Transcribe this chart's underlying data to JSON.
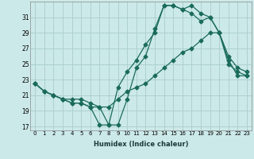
{
  "xlabel": "Humidex (Indice chaleur)",
  "ylabel": "",
  "bg_color": "#cce9e9",
  "line_color": "#1a6b5a",
  "grid_color": "#aed0d0",
  "xlim": [
    -0.5,
    23.5
  ],
  "ylim": [
    16.5,
    33.0
  ],
  "xticks": [
    0,
    1,
    2,
    3,
    4,
    5,
    6,
    7,
    8,
    9,
    10,
    11,
    12,
    13,
    14,
    15,
    16,
    17,
    18,
    19,
    20,
    21,
    22,
    23
  ],
  "yticks": [
    17,
    19,
    21,
    23,
    25,
    27,
    29,
    31
  ],
  "line1_x": [
    0,
    1,
    2,
    3,
    4,
    5,
    6,
    7,
    8,
    9,
    10,
    11,
    12,
    13,
    14,
    15,
    16,
    17,
    18,
    19,
    20,
    21,
    22,
    23
  ],
  "line1_y": [
    22.5,
    21.5,
    21.0,
    20.5,
    20.5,
    20.5,
    20.0,
    19.5,
    17.2,
    17.2,
    20.5,
    24.5,
    26.0,
    29.5,
    32.5,
    32.5,
    32.0,
    32.5,
    31.5,
    31.0,
    29.0,
    26.0,
    24.5,
    24.0
  ],
  "line2_x": [
    0,
    1,
    2,
    3,
    4,
    5,
    6,
    7,
    8,
    9,
    10,
    11,
    12,
    13,
    14,
    15,
    16,
    17,
    18,
    19,
    20,
    21,
    22,
    23
  ],
  "line2_y": [
    22.5,
    21.5,
    21.0,
    20.5,
    20.0,
    20.0,
    19.5,
    17.2,
    17.2,
    22.0,
    24.0,
    25.5,
    27.5,
    29.0,
    32.5,
    32.5,
    32.0,
    31.5,
    30.5,
    31.0,
    29.0,
    25.0,
    24.0,
    23.5
  ],
  "line3_x": [
    0,
    1,
    2,
    3,
    4,
    5,
    6,
    7,
    8,
    9,
    10,
    11,
    12,
    13,
    14,
    15,
    16,
    17,
    18,
    19,
    20,
    21,
    22,
    23
  ],
  "line3_y": [
    22.5,
    21.5,
    21.0,
    20.5,
    20.0,
    20.0,
    19.5,
    19.5,
    19.5,
    20.5,
    21.5,
    22.0,
    22.5,
    23.5,
    24.5,
    25.5,
    26.5,
    27.0,
    28.0,
    29.0,
    29.0,
    25.5,
    23.5,
    23.5
  ]
}
